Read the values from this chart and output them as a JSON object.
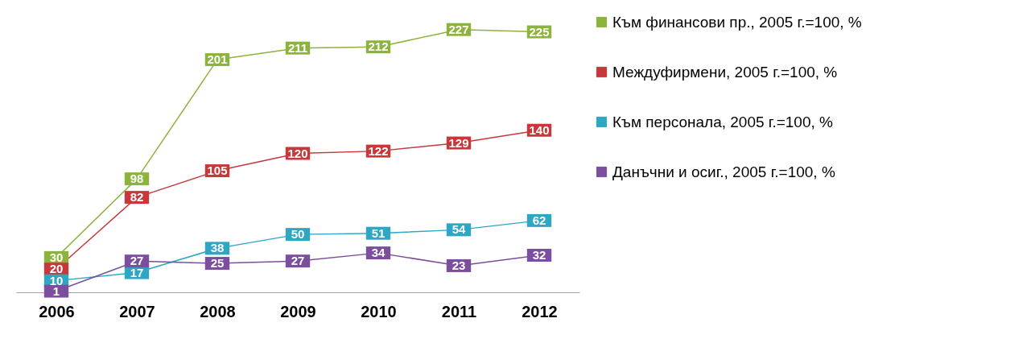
{
  "chart_data": {
    "type": "line",
    "categories": [
      "2006",
      "2007",
      "2008",
      "2009",
      "2010",
      "2011",
      "2012"
    ],
    "series": [
      {
        "name": "Към финансови пр., 2005 г.=100, %",
        "color": "#8cb43c",
        "values": [
          30,
          98,
          201,
          211,
          212,
          227,
          225
        ]
      },
      {
        "name": "Междуфирмени, 2005 г.=100, %",
        "color": "#c8383a",
        "values": [
          20,
          82,
          105,
          120,
          122,
          129,
          140
        ]
      },
      {
        "name": "Към персонала, 2005 г.=100, %",
        "color": "#2ea6c4",
        "values": [
          10,
          17,
          38,
          50,
          51,
          54,
          62
        ]
      },
      {
        "name": "Данъчни и осиг., 2005 г.=100, %",
        "color": "#7b4f9d",
        "values": [
          1,
          27,
          25,
          27,
          34,
          23,
          32
        ]
      }
    ],
    "data_labels": true,
    "marker": "square",
    "legend": "right",
    "tick_labels": "x",
    "grid": false
  }
}
